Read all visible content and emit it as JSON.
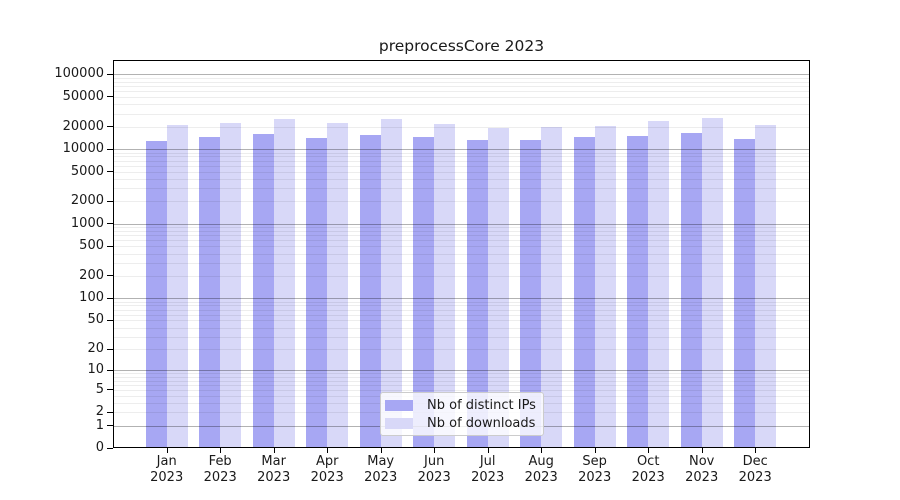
{
  "title": "preprocessCore 2023",
  "legend": {
    "items": [
      {
        "label": "Nb of distinct IPs",
        "color": "#a7a7f3"
      },
      {
        "label": "Nb of downloads",
        "color": "#d8d8f8"
      }
    ]
  },
  "chart_data": {
    "type": "bar",
    "title": "preprocessCore 2023",
    "categories": [
      "Jan 2023",
      "Feb 2023",
      "Mar 2023",
      "Apr 2023",
      "May 2023",
      "Jun 2023",
      "Jul 2023",
      "Aug 2023",
      "Sep 2023",
      "Oct 2023",
      "Nov 2023",
      "Dec 2023"
    ],
    "series": [
      {
        "name": "Nb of distinct IPs",
        "color": "#a7a7f3",
        "values": [
          12800,
          14500,
          15900,
          14300,
          15500,
          14700,
          13100,
          13100,
          14500,
          14900,
          16400,
          13700
        ]
      },
      {
        "name": "Nb of downloads",
        "color": "#d8d8f8",
        "values": [
          21100,
          22300,
          25000,
          22100,
          25000,
          21600,
          19100,
          20100,
          20500,
          23500,
          26000,
          20800
        ]
      }
    ],
    "yscale": "log1p",
    "yticks": [
      0,
      1,
      2,
      5,
      10,
      20,
      50,
      100,
      200,
      500,
      1000,
      2000,
      5000,
      10000,
      20000,
      50000,
      100000
    ],
    "ylim": [
      0,
      155000
    ],
    "xlabel": "",
    "ylabel": "",
    "grid": "horizontal-on-top-of-bars",
    "legend_position": "bottom-center-inside"
  }
}
